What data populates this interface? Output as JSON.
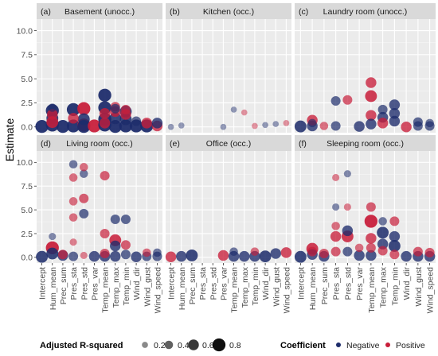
{
  "chart_data": {
    "type": "scatter",
    "ylabel": "Estimate",
    "ylim": [
      -0.6,
      11.2
    ],
    "yticks": [
      "0.0",
      "2.5",
      "5.0",
      "7.5",
      "10.0"
    ],
    "ytick_values": [
      0,
      2.5,
      5,
      7.5,
      10
    ],
    "grid": true,
    "categories": [
      "Intercept",
      "Hum_mean",
      "Prec_sum",
      "Pres_sta",
      "Pres_std",
      "Pres_var",
      "Temp_mean",
      "Temp_max",
      "Temp_min",
      "Wind_dir",
      "Wind_gust",
      "Wind_speed"
    ],
    "panels": [
      {
        "label": "(a)",
        "title": "Basement (unocc.)",
        "points": [
          {
            "c": 0,
            "y": 0.05,
            "sign": "neg",
            "r2": 0.8
          },
          {
            "c": 1,
            "y": 0.2,
            "sign": "neg",
            "r2": 0.8
          },
          {
            "c": 1,
            "y": 0.9,
            "sign": "neg",
            "r2": 0.7
          },
          {
            "c": 1,
            "y": 1.7,
            "sign": "neg",
            "r2": 0.8
          },
          {
            "c": 1,
            "y": 0.5,
            "sign": "pos",
            "r2": 0.7
          },
          {
            "c": 1,
            "y": 1.3,
            "sign": "pos",
            "r2": 0.6
          },
          {
            "c": 1,
            "y": 2.0,
            "sign": "neg",
            "r2": 0.4
          },
          {
            "c": 2,
            "y": 0.05,
            "sign": "neg",
            "r2": 0.8
          },
          {
            "c": 3,
            "y": 0.1,
            "sign": "neg",
            "r2": 0.8
          },
          {
            "c": 3,
            "y": 0.9,
            "sign": "pos",
            "r2": 0.6
          },
          {
            "c": 3,
            "y": 1.8,
            "sign": "neg",
            "r2": 0.8
          },
          {
            "c": 4,
            "y": 0.2,
            "sign": "pos",
            "r2": 0.8
          },
          {
            "c": 4,
            "y": 0.8,
            "sign": "neg",
            "r2": 0.7
          },
          {
            "c": 4,
            "y": 1.9,
            "sign": "pos",
            "r2": 0.8
          },
          {
            "c": 4,
            "y": 0.05,
            "sign": "neg",
            "r2": 0.8
          },
          {
            "c": 5,
            "y": 0.1,
            "sign": "pos",
            "r2": 0.8
          },
          {
            "c": 6,
            "y": 0.2,
            "sign": "neg",
            "r2": 0.8
          },
          {
            "c": 6,
            "y": 0.8,
            "sign": "neg",
            "r2": 0.8
          },
          {
            "c": 6,
            "y": 2.0,
            "sign": "neg",
            "r2": 0.8
          },
          {
            "c": 6,
            "y": 3.3,
            "sign": "neg",
            "r2": 0.8
          },
          {
            "c": 6,
            "y": 1.4,
            "sign": "pos",
            "r2": 0.6
          },
          {
            "c": 6,
            "y": 0.4,
            "sign": "pos",
            "r2": 0.6
          },
          {
            "c": 7,
            "y": 0.05,
            "sign": "neg",
            "r2": 0.8
          },
          {
            "c": 7,
            "y": 0.9,
            "sign": "neg",
            "r2": 0.7
          },
          {
            "c": 7,
            "y": 1.6,
            "sign": "pos",
            "r2": 0.6
          },
          {
            "c": 7,
            "y": 2.1,
            "sign": "pos",
            "r2": 0.5
          },
          {
            "c": 7,
            "y": 1.9,
            "sign": "neg",
            "r2": 0.5
          },
          {
            "c": 8,
            "y": 0.1,
            "sign": "neg",
            "r2": 0.8
          },
          {
            "c": 8,
            "y": 0.8,
            "sign": "neg",
            "r2": 0.7
          },
          {
            "c": 8,
            "y": 1.6,
            "sign": "neg",
            "r2": 0.7
          },
          {
            "c": 8,
            "y": 1.3,
            "sign": "pos",
            "r2": 0.6
          },
          {
            "c": 8,
            "y": 1.8,
            "sign": "pos",
            "r2": 0.5
          },
          {
            "c": 9,
            "y": 0.1,
            "sign": "neg",
            "r2": 0.8
          },
          {
            "c": 9,
            "y": 0.6,
            "sign": "neg",
            "r2": 0.5
          },
          {
            "c": 10,
            "y": 0.1,
            "sign": "neg",
            "r2": 0.8
          },
          {
            "c": 10,
            "y": 0.4,
            "sign": "pos",
            "r2": 0.6
          },
          {
            "c": 11,
            "y": 0.1,
            "sign": "pos",
            "r2": 0.6
          },
          {
            "c": 11,
            "y": 0.4,
            "sign": "neg",
            "r2": 0.6
          }
        ]
      },
      {
        "label": "(b)",
        "title": "Kitchen (occ.)",
        "points": [
          {
            "c": 0,
            "y": 0.0,
            "sign": "neg",
            "r2": 0.2
          },
          {
            "c": 1,
            "y": 0.15,
            "sign": "neg",
            "r2": 0.2
          },
          {
            "c": 5,
            "y": 0.0,
            "sign": "neg",
            "r2": 0.2
          },
          {
            "c": 6,
            "y": 1.8,
            "sign": "neg",
            "r2": 0.2
          },
          {
            "c": 7,
            "y": 1.5,
            "sign": "pos",
            "r2": 0.2
          },
          {
            "c": 8,
            "y": 0.1,
            "sign": "pos",
            "r2": 0.2
          },
          {
            "c": 9,
            "y": 0.2,
            "sign": "neg",
            "r2": 0.2
          },
          {
            "c": 10,
            "y": 0.3,
            "sign": "neg",
            "r2": 0.2
          },
          {
            "c": 11,
            "y": 0.4,
            "sign": "pos",
            "r2": 0.2
          }
        ]
      },
      {
        "label": "(c)",
        "title": "Laundry room (unocc.)",
        "points": [
          {
            "c": 0,
            "y": 0.05,
            "sign": "neg",
            "r2": 0.7
          },
          {
            "c": 1,
            "y": 0.1,
            "sign": "neg",
            "r2": 0.6
          },
          {
            "c": 1,
            "y": 0.7,
            "sign": "pos",
            "r2": 0.6
          },
          {
            "c": 1,
            "y": 0.4,
            "sign": "neg",
            "r2": 0.4
          },
          {
            "c": 2,
            "y": 0.1,
            "sign": "pos",
            "r2": 0.4
          },
          {
            "c": 3,
            "y": 2.7,
            "sign": "neg",
            "r2": 0.5
          },
          {
            "c": 3,
            "y": 0.1,
            "sign": "neg",
            "r2": 0.5
          },
          {
            "c": 4,
            "y": 2.8,
            "sign": "pos",
            "r2": 0.5
          },
          {
            "c": 5,
            "y": 0.05,
            "sign": "neg",
            "r2": 0.6
          },
          {
            "c": 6,
            "y": 4.6,
            "sign": "pos",
            "r2": 0.6
          },
          {
            "c": 6,
            "y": 3.2,
            "sign": "pos",
            "r2": 0.7
          },
          {
            "c": 6,
            "y": 1.2,
            "sign": "pos",
            "r2": 0.6
          },
          {
            "c": 6,
            "y": 0.3,
            "sign": "neg",
            "r2": 0.6
          },
          {
            "c": 7,
            "y": 1.0,
            "sign": "neg",
            "r2": 0.6
          },
          {
            "c": 7,
            "y": 1.8,
            "sign": "neg",
            "r2": 0.5
          },
          {
            "c": 7,
            "y": 0.4,
            "sign": "pos",
            "r2": 0.6
          },
          {
            "c": 8,
            "y": 2.3,
            "sign": "neg",
            "r2": 0.6
          },
          {
            "c": 8,
            "y": 1.4,
            "sign": "neg",
            "r2": 0.6
          },
          {
            "c": 8,
            "y": 0.6,
            "sign": "neg",
            "r2": 0.6
          },
          {
            "c": 9,
            "y": 0.0,
            "sign": "pos",
            "r2": 0.6
          },
          {
            "c": 10,
            "y": 0.1,
            "sign": "neg",
            "r2": 0.5
          },
          {
            "c": 10,
            "y": 0.5,
            "sign": "neg",
            "r2": 0.5
          },
          {
            "c": 11,
            "y": 0.1,
            "sign": "neg",
            "r2": 0.5
          },
          {
            "c": 11,
            "y": 0.4,
            "sign": "neg",
            "r2": 0.4
          }
        ]
      },
      {
        "label": "(d)",
        "title": "Living room (occ.)",
        "points": [
          {
            "c": 0,
            "y": 0.05,
            "sign": "neg",
            "r2": 0.7
          },
          {
            "c": 1,
            "y": 0.4,
            "sign": "neg",
            "r2": 0.7
          },
          {
            "c": 1,
            "y": 1.0,
            "sign": "pos",
            "r2": 0.8
          },
          {
            "c": 1,
            "y": 2.2,
            "sign": "neg",
            "r2": 0.3
          },
          {
            "c": 2,
            "y": 0.2,
            "sign": "neg",
            "r2": 0.6
          },
          {
            "c": 2,
            "y": 0.3,
            "sign": "pos",
            "r2": 0.5
          },
          {
            "c": 3,
            "y": 1.6,
            "sign": "pos",
            "r2": 0.3
          },
          {
            "c": 3,
            "y": 4.2,
            "sign": "pos",
            "r2": 0.4
          },
          {
            "c": 3,
            "y": 5.9,
            "sign": "pos",
            "r2": 0.4
          },
          {
            "c": 3,
            "y": 8.4,
            "sign": "pos",
            "r2": 0.4
          },
          {
            "c": 3,
            "y": 9.8,
            "sign": "neg",
            "r2": 0.4
          },
          {
            "c": 3,
            "y": 0.1,
            "sign": "neg",
            "r2": 0.5
          },
          {
            "c": 4,
            "y": 0.2,
            "sign": "pos",
            "r2": 0.3
          },
          {
            "c": 4,
            "y": 4.6,
            "sign": "neg",
            "r2": 0.5
          },
          {
            "c": 4,
            "y": 6.2,
            "sign": "pos",
            "r2": 0.5
          },
          {
            "c": 4,
            "y": 8.8,
            "sign": "neg",
            "r2": 0.4
          },
          {
            "c": 4,
            "y": 9.5,
            "sign": "pos",
            "r2": 0.4
          },
          {
            "c": 5,
            "y": 0.1,
            "sign": "neg",
            "r2": 0.6
          },
          {
            "c": 6,
            "y": 8.6,
            "sign": "pos",
            "r2": 0.5
          },
          {
            "c": 6,
            "y": 2.5,
            "sign": "pos",
            "r2": 0.5
          },
          {
            "c": 6,
            "y": 0.4,
            "sign": "pos",
            "r2": 0.5
          },
          {
            "c": 6,
            "y": 0.1,
            "sign": "neg",
            "r2": 0.6
          },
          {
            "c": 7,
            "y": 4.0,
            "sign": "neg",
            "r2": 0.5
          },
          {
            "c": 7,
            "y": 1.8,
            "sign": "pos",
            "r2": 0.7
          },
          {
            "c": 7,
            "y": 1.2,
            "sign": "neg",
            "r2": 0.6
          },
          {
            "c": 7,
            "y": 0.1,
            "sign": "neg",
            "r2": 0.6
          },
          {
            "c": 8,
            "y": 4.0,
            "sign": "neg",
            "r2": 0.5
          },
          {
            "c": 8,
            "y": 1.3,
            "sign": "pos",
            "r2": 0.5
          },
          {
            "c": 8,
            "y": 0.3,
            "sign": "neg",
            "r2": 0.5
          },
          {
            "c": 9,
            "y": 0.05,
            "sign": "neg",
            "r2": 0.6
          },
          {
            "c": 10,
            "y": 0.1,
            "sign": "neg",
            "r2": 0.5
          },
          {
            "c": 10,
            "y": 0.5,
            "sign": "pos",
            "r2": 0.4
          },
          {
            "c": 11,
            "y": 0.1,
            "sign": "neg",
            "r2": 0.5
          },
          {
            "c": 11,
            "y": 0.5,
            "sign": "neg",
            "r2": 0.4
          }
        ]
      },
      {
        "label": "(e)",
        "title": "Office (occ.)",
        "points": [
          {
            "c": 0,
            "y": 0.05,
            "sign": "pos",
            "r2": 0.6
          },
          {
            "c": 1,
            "y": 0.1,
            "sign": "neg",
            "r2": 0.6
          },
          {
            "c": 2,
            "y": 0.2,
            "sign": "neg",
            "r2": 0.7
          },
          {
            "c": 5,
            "y": 0.2,
            "sign": "pos",
            "r2": 0.6
          },
          {
            "c": 6,
            "y": 0.1,
            "sign": "neg",
            "r2": 0.6
          },
          {
            "c": 6,
            "y": 0.6,
            "sign": "neg",
            "r2": 0.4
          },
          {
            "c": 7,
            "y": 0.1,
            "sign": "neg",
            "r2": 0.6
          },
          {
            "c": 8,
            "y": 0.1,
            "sign": "neg",
            "r2": 0.6
          },
          {
            "c": 8,
            "y": 0.6,
            "sign": "pos",
            "r2": 0.4
          },
          {
            "c": 9,
            "y": 0.1,
            "sign": "neg",
            "r2": 0.7
          },
          {
            "c": 10,
            "y": 0.4,
            "sign": "neg",
            "r2": 0.6
          },
          {
            "c": 11,
            "y": 0.5,
            "sign": "pos",
            "r2": 0.6
          }
        ]
      },
      {
        "label": "(f)",
        "title": "Sleeping room (occ.)",
        "points": [
          {
            "c": 0,
            "y": 0.05,
            "sign": "neg",
            "r2": 0.7
          },
          {
            "c": 1,
            "y": 0.3,
            "sign": "neg",
            "r2": 0.6
          },
          {
            "c": 1,
            "y": 0.9,
            "sign": "pos",
            "r2": 0.7
          },
          {
            "c": 1,
            "y": 0.6,
            "sign": "pos",
            "r2": 0.5
          },
          {
            "c": 2,
            "y": 0.1,
            "sign": "neg",
            "r2": 0.6
          },
          {
            "c": 2,
            "y": 0.4,
            "sign": "pos",
            "r2": 0.5
          },
          {
            "c": 3,
            "y": 8.4,
            "sign": "pos",
            "r2": 0.3
          },
          {
            "c": 3,
            "y": 5.3,
            "sign": "neg",
            "r2": 0.3
          },
          {
            "c": 3,
            "y": 3.3,
            "sign": "pos",
            "r2": 0.4
          },
          {
            "c": 3,
            "y": 2.2,
            "sign": "pos",
            "r2": 0.6
          },
          {
            "c": 3,
            "y": 0.6,
            "sign": "pos",
            "r2": 0.5
          },
          {
            "c": 4,
            "y": 8.8,
            "sign": "neg",
            "r2": 0.3
          },
          {
            "c": 4,
            "y": 5.3,
            "sign": "pos",
            "r2": 0.3
          },
          {
            "c": 4,
            "y": 2.8,
            "sign": "neg",
            "r2": 0.6
          },
          {
            "c": 4,
            "y": 2.2,
            "sign": "pos",
            "r2": 0.7
          },
          {
            "c": 4,
            "y": 0.6,
            "sign": "neg",
            "r2": 0.5
          },
          {
            "c": 5,
            "y": 0.2,
            "sign": "neg",
            "r2": 0.6
          },
          {
            "c": 5,
            "y": 1.0,
            "sign": "pos",
            "r2": 0.4
          },
          {
            "c": 6,
            "y": 5.3,
            "sign": "pos",
            "r2": 0.5
          },
          {
            "c": 6,
            "y": 3.8,
            "sign": "pos",
            "r2": 0.8
          },
          {
            "c": 6,
            "y": 2.0,
            "sign": "pos",
            "r2": 0.6
          },
          {
            "c": 6,
            "y": 1.0,
            "sign": "pos",
            "r2": 0.5
          },
          {
            "c": 6,
            "y": 0.2,
            "sign": "neg",
            "r2": 0.6
          },
          {
            "c": 7,
            "y": 3.8,
            "sign": "neg",
            "r2": 0.4
          },
          {
            "c": 7,
            "y": 2.6,
            "sign": "neg",
            "r2": 0.7
          },
          {
            "c": 7,
            "y": 1.4,
            "sign": "neg",
            "r2": 0.6
          },
          {
            "c": 7,
            "y": 0.7,
            "sign": "pos",
            "r2": 0.5
          },
          {
            "c": 8,
            "y": 3.8,
            "sign": "pos",
            "r2": 0.5
          },
          {
            "c": 8,
            "y": 2.2,
            "sign": "neg",
            "r2": 0.6
          },
          {
            "c": 8,
            "y": 1.2,
            "sign": "neg",
            "r2": 0.7
          },
          {
            "c": 8,
            "y": 0.3,
            "sign": "pos",
            "r2": 0.5
          },
          {
            "c": 9,
            "y": 0.1,
            "sign": "neg",
            "r2": 0.6
          },
          {
            "c": 10,
            "y": 0.1,
            "sign": "neg",
            "r2": 0.6
          },
          {
            "c": 10,
            "y": 0.6,
            "sign": "pos",
            "r2": 0.5
          },
          {
            "c": 11,
            "y": 0.1,
            "sign": "neg",
            "r2": 0.6
          },
          {
            "c": 11,
            "y": 0.5,
            "sign": "pos",
            "r2": 0.5
          }
        ]
      }
    ],
    "legend": {
      "size_title": "Adjusted R-squared",
      "size_levels": [
        {
          "value": 0.2,
          "label": "0.2"
        },
        {
          "value": 0.4,
          "label": "0.4"
        },
        {
          "value": 0.6,
          "label": "0.6"
        },
        {
          "value": 0.8,
          "label": "0.8"
        }
      ],
      "color_title": "Coefficient",
      "color_levels": [
        {
          "key": "neg",
          "label": "Negative"
        },
        {
          "key": "pos",
          "label": "Positive"
        }
      ],
      "placement": "bottom"
    },
    "colors": {
      "neg": "#1d2c6b",
      "pos": "#c81e3a",
      "panel_bg": "#ebebeb",
      "strip_bg": "#d9d9d9",
      "grid_major": "#ffffff"
    }
  }
}
